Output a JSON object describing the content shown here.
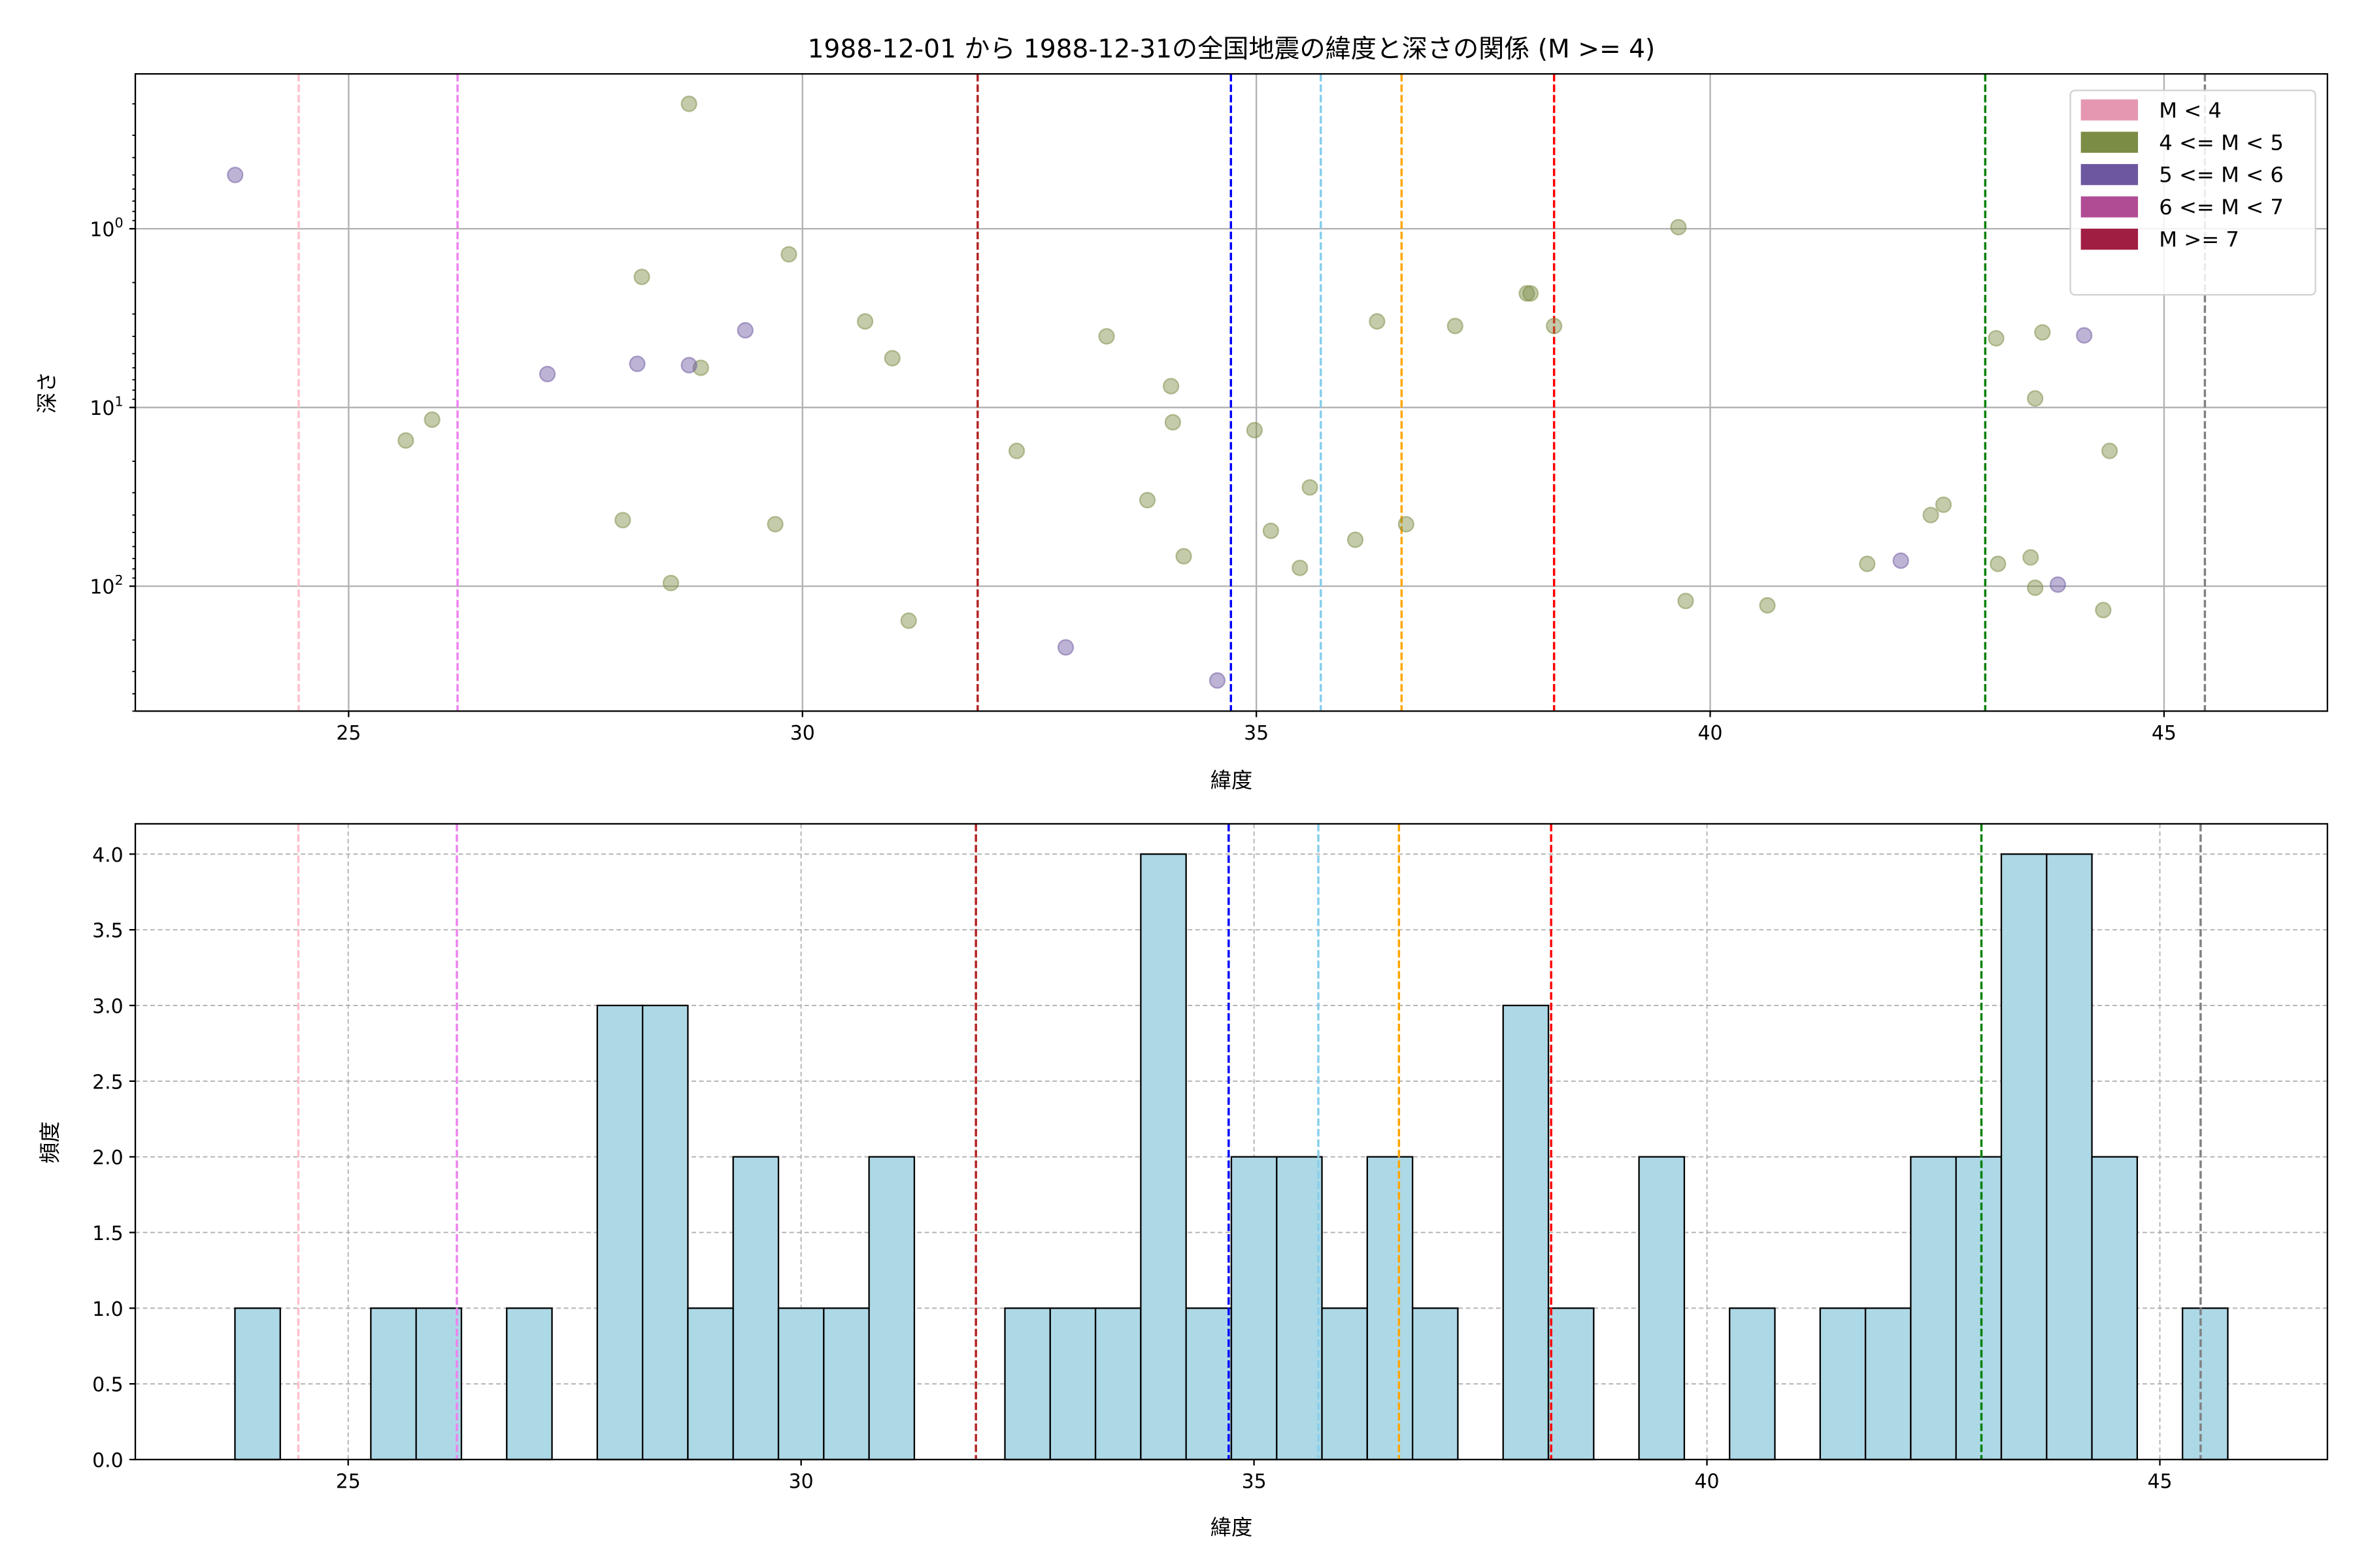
{
  "chart_data": [
    {
      "type": "scatter",
      "title": "1988-12-01 から 1988-12-31の全国地震の緯度と深さの関係 (M >= 4)",
      "xlabel": "緯度",
      "ylabel": "深さ",
      "xlim": [
        22.65,
        46.8
      ],
      "ylim": [
        500,
        0.136
      ],
      "yscale": "log",
      "y_inverted": true,
      "grid": true,
      "xticks": [
        "25",
        "30",
        "35",
        "40",
        "45"
      ],
      "xtick_values": [
        25,
        30,
        35,
        40,
        45
      ],
      "yticks": [
        {
          "base": "10",
          "exp": "0",
          "value": 1
        },
        {
          "base": "10",
          "exp": "1",
          "value": 10
        },
        {
          "base": "10",
          "exp": "2",
          "value": 100
        }
      ],
      "legend_position": "top-right",
      "legend": [
        {
          "label": "M < 4",
          "color": "#e597b1"
        },
        {
          "label": "4 <= M < 5",
          "color": "#7b8c44"
        },
        {
          "label": "5 <= M < 6",
          "color": "#6d57a0"
        },
        {
          "label": "6 <= M < 7",
          "color": "#b04c94"
        },
        {
          "label": "M >= 7",
          "color": "#a01e42"
        }
      ],
      "series": [
        {
          "name": "4 <= M < 5",
          "color": "#7b8c44",
          "points": [
            [
              28.75,
              0.2
            ],
            [
              28.23,
              1.86
            ],
            [
              29.85,
              1.39
            ],
            [
              30.69,
              3.3
            ],
            [
              30.99,
              5.3
            ],
            [
              28.88,
              6.0
            ],
            [
              25.63,
              15.3
            ],
            [
              25.92,
              11.7
            ],
            [
              28.02,
              42.7
            ],
            [
              28.55,
              96
            ],
            [
              29.7,
              45
            ],
            [
              31.17,
              156
            ],
            [
              32.36,
              17.5
            ],
            [
              33.35,
              4.0
            ],
            [
              33.8,
              33
            ],
            [
              34.06,
              7.6
            ],
            [
              34.08,
              12.1
            ],
            [
              34.2,
              68
            ],
            [
              34.98,
              13.4
            ],
            [
              35.16,
              49
            ],
            [
              35.48,
              79
            ],
            [
              35.59,
              28
            ],
            [
              36.09,
              55
            ],
            [
              36.33,
              3.3
            ],
            [
              36.65,
              45
            ],
            [
              37.19,
              3.5
            ],
            [
              37.98,
              2.3
            ],
            [
              38.02,
              2.3
            ],
            [
              38.28,
              3.5
            ],
            [
              39.65,
              0.98
            ],
            [
              39.73,
              121
            ],
            [
              40.63,
              128
            ],
            [
              41.73,
              75
            ],
            [
              42.43,
              40
            ],
            [
              42.57,
              35
            ],
            [
              43.15,
              4.1
            ],
            [
              43.66,
              3.8
            ],
            [
              43.58,
              8.9
            ],
            [
              43.53,
              69
            ],
            [
              43.58,
              102
            ],
            [
              43.17,
              75
            ],
            [
              44.33,
              136
            ],
            [
              44.4,
              17.5
            ]
          ]
        },
        {
          "name": "5 <= M < 6",
          "color": "#6d57a0",
          "points": [
            [
              23.75,
              0.5
            ],
            [
              27.19,
              6.5
            ],
            [
              28.18,
              5.7
            ],
            [
              28.75,
              5.8
            ],
            [
              29.37,
              3.7
            ],
            [
              32.9,
              220
            ],
            [
              34.57,
              337
            ],
            [
              42.1,
              72
            ],
            [
              43.83,
              98
            ],
            [
              44.12,
              3.95
            ]
          ]
        }
      ],
      "vlines": [
        {
          "x": 24.45,
          "color": "#ffc0cb"
        },
        {
          "x": 26.2,
          "color": "#ee82ee"
        },
        {
          "x": 31.93,
          "color": "#b22222"
        },
        {
          "x": 34.72,
          "color": "#0000ff"
        },
        {
          "x": 35.71,
          "color": "#87ceeb"
        },
        {
          "x": 36.6,
          "color": "#ffa500"
        },
        {
          "x": 38.28,
          "color": "#ff0000"
        },
        {
          "x": 43.03,
          "color": "#008000"
        },
        {
          "x": 45.45,
          "color": "#808080"
        }
      ]
    },
    {
      "type": "bar",
      "subtype": "histogram",
      "xlabel": "緯度",
      "ylabel": "頻度",
      "xlim": [
        22.65,
        46.85
      ],
      "ylim": [
        0,
        4.2
      ],
      "grid": true,
      "bar_color": "#add8e6",
      "bin_start": 23.75,
      "bin_width": 0.5,
      "counts": [
        1,
        0,
        0,
        1,
        1,
        0,
        1,
        0,
        3,
        3,
        1,
        2,
        1,
        1,
        2,
        0,
        0,
        1,
        1,
        1,
        4,
        1,
        2,
        2,
        1,
        2,
        1,
        0,
        3,
        1,
        0,
        2,
        0,
        1,
        0,
        1,
        1,
        2,
        2,
        4,
        4,
        2,
        0,
        1
      ],
      "xticks": [
        "25",
        "30",
        "35",
        "40",
        "45"
      ],
      "xtick_values": [
        25,
        30,
        35,
        40,
        45
      ],
      "yticks": [
        "0.0",
        "0.5",
        "1.0",
        "1.5",
        "2.0",
        "2.5",
        "3.0",
        "3.5",
        "4.0"
      ],
      "ytick_values": [
        0,
        0.5,
        1,
        1.5,
        2,
        2.5,
        3,
        3.5,
        4
      ]
    }
  ]
}
